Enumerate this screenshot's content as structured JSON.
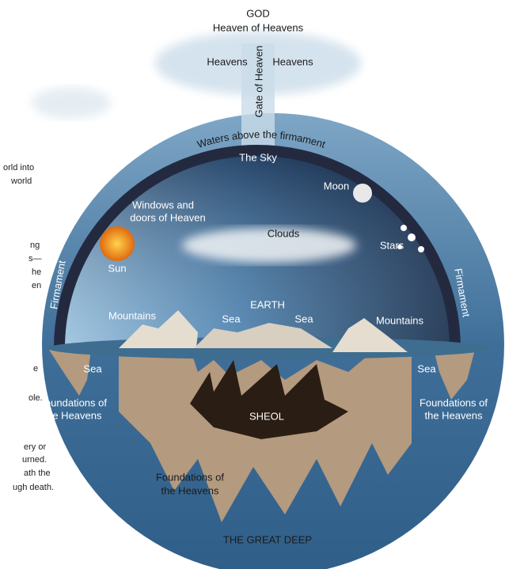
{
  "header": {
    "top": "GOD",
    "sub": "Heaven of Heavens"
  },
  "labels": {
    "heavens_left": "Heavens",
    "heavens_right": "Heavens",
    "gate": "Gate of Heaven",
    "waters": "Waters above the firmament",
    "sky": "The Sky",
    "moon": "Moon",
    "windows_1": "Windows and",
    "windows_2": "doors of Heaven",
    "clouds": "Clouds",
    "stars": "Stars",
    "sun": "Sun",
    "firmament_left": "Firmament",
    "firmament_right": "Firmament",
    "earth": "EARTH",
    "mountains_left": "Mountains",
    "sea_mid_left": "Sea",
    "sea_mid_right": "Sea",
    "mountains_right": "Mountains",
    "sea_left": "Sea",
    "sea_right": "Sea",
    "foundations_left_1": "Foundations of",
    "foundations_left_2": "the Heavens",
    "foundations_right_1": "Foundations of",
    "foundations_right_2": "the Heavens",
    "sheol": "SHEOL",
    "foundations_bottom_1": "Foundations of",
    "foundations_bottom_2": "the Heavens",
    "great_deep": "THE GREAT DEEP"
  },
  "side_text": [
    "orld into",
    "world",
    "ng",
    "s—",
    "he",
    "en",
    "e",
    "ole.",
    "ery or",
    "urned.",
    "ath the",
    "ugh death."
  ]
}
